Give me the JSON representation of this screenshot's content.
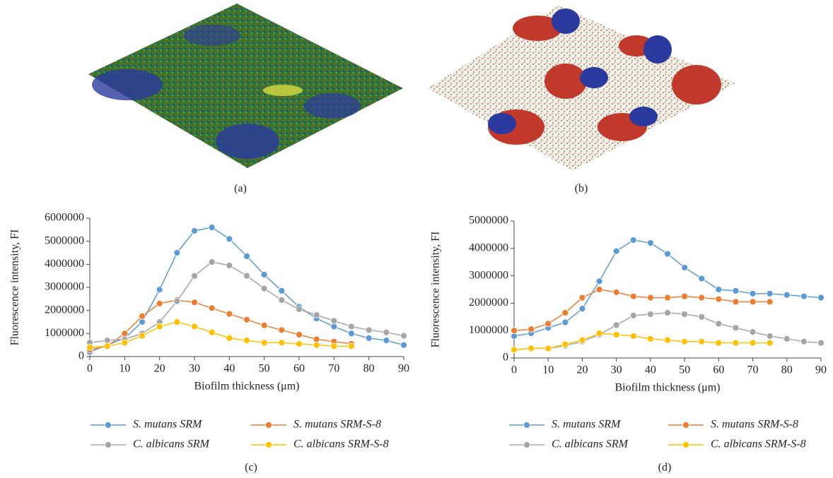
{
  "panel_labels": [
    "(a)",
    "(b)"
  ],
  "chart_data": [
    {
      "type": "line",
      "caption": "(c)",
      "y_label": "Fluorescence intensity, FI",
      "x_label": "Biofilm thickness (μm)",
      "x": [
        0,
        5,
        10,
        15,
        20,
        25,
        30,
        35,
        40,
        45,
        50,
        55,
        60,
        65,
        70,
        75,
        80,
        85,
        90
      ],
      "xlim": [
        0,
        90
      ],
      "xticks": [
        0,
        10,
        20,
        30,
        40,
        50,
        60,
        70,
        80,
        90
      ],
      "ylim": [
        0,
        6000000
      ],
      "yticks": [
        0,
        1000000,
        2000000,
        3000000,
        4000000,
        5000000,
        6000000
      ],
      "series": [
        {
          "name": "S. mutans SRM",
          "color": "#5b9bd5",
          "values": [
            200000,
            500000,
            800000,
            1500000,
            2900000,
            4500000,
            5450000,
            5600000,
            5100000,
            4350000,
            3550000,
            2850000,
            2150000,
            1650000,
            1300000,
            1000000,
            800000,
            700000,
            500000
          ]
        },
        {
          "name": "S. mutans SRM-S-8",
          "color": "#ed7d31",
          "values": [
            300000,
            450000,
            1000000,
            1750000,
            2300000,
            2450000,
            2350000,
            2100000,
            1850000,
            1600000,
            1350000,
            1150000,
            950000,
            750000,
            650000,
            550000,
            null,
            null,
            null
          ]
        },
        {
          "name": "C. albicans SRM",
          "color": "#a5a5a5",
          "values": [
            600000,
            700000,
            750000,
            1000000,
            1500000,
            2400000,
            3500000,
            4100000,
            3950000,
            3500000,
            2950000,
            2450000,
            2050000,
            1800000,
            1550000,
            1300000,
            1150000,
            1050000,
            900000
          ]
        },
        {
          "name": "C. albicans SRM-S-8",
          "color": "#ffc000",
          "values": [
            400000,
            450000,
            600000,
            900000,
            1300000,
            1500000,
            1300000,
            1050000,
            800000,
            700000,
            600000,
            600000,
            550000,
            500000,
            450000,
            450000,
            null,
            null,
            null
          ]
        }
      ]
    },
    {
      "type": "line",
      "caption": "(d)",
      "y_label": "Fluorescence intensity, FI",
      "x_label": "Biofilm thickness (μm)",
      "x": [
        0,
        5,
        10,
        15,
        20,
        25,
        30,
        35,
        40,
        45,
        50,
        55,
        60,
        65,
        70,
        75,
        80,
        85,
        90
      ],
      "xlim": [
        0,
        90
      ],
      "xticks": [
        0,
        10,
        20,
        30,
        40,
        50,
        60,
        70,
        80,
        90
      ],
      "ylim": [
        0,
        5000000
      ],
      "yticks": [
        0,
        1000000,
        2000000,
        3000000,
        4000000,
        5000000
      ],
      "series": [
        {
          "name": "S. mutans SRM",
          "color": "#5b9bd5",
          "values": [
            800000,
            900000,
            1100000,
            1300000,
            1800000,
            2800000,
            3900000,
            4300000,
            4200000,
            3800000,
            3300000,
            2900000,
            2500000,
            2450000,
            2350000,
            2350000,
            2300000,
            2250000,
            2200000
          ]
        },
        {
          "name": "S. mutans SRM-S-8",
          "color": "#ed7d31",
          "values": [
            1000000,
            1050000,
            1250000,
            1650000,
            2200000,
            2500000,
            2400000,
            2250000,
            2200000,
            2200000,
            2250000,
            2200000,
            2150000,
            2050000,
            2050000,
            2050000,
            null,
            null,
            null
          ]
        },
        {
          "name": "C. albicans SRM",
          "color": "#a5a5a5",
          "values": [
            300000,
            350000,
            350000,
            450000,
            600000,
            850000,
            1200000,
            1550000,
            1600000,
            1650000,
            1600000,
            1500000,
            1250000,
            1100000,
            950000,
            800000,
            700000,
            600000,
            550000
          ]
        },
        {
          "name": "C. albicans SRM-S-8",
          "color": "#ffc000",
          "values": [
            300000,
            350000,
            350000,
            500000,
            650000,
            900000,
            850000,
            800000,
            700000,
            650000,
            600000,
            600000,
            550000,
            550000,
            550000,
            550000,
            null,
            null,
            null
          ]
        }
      ]
    }
  ]
}
